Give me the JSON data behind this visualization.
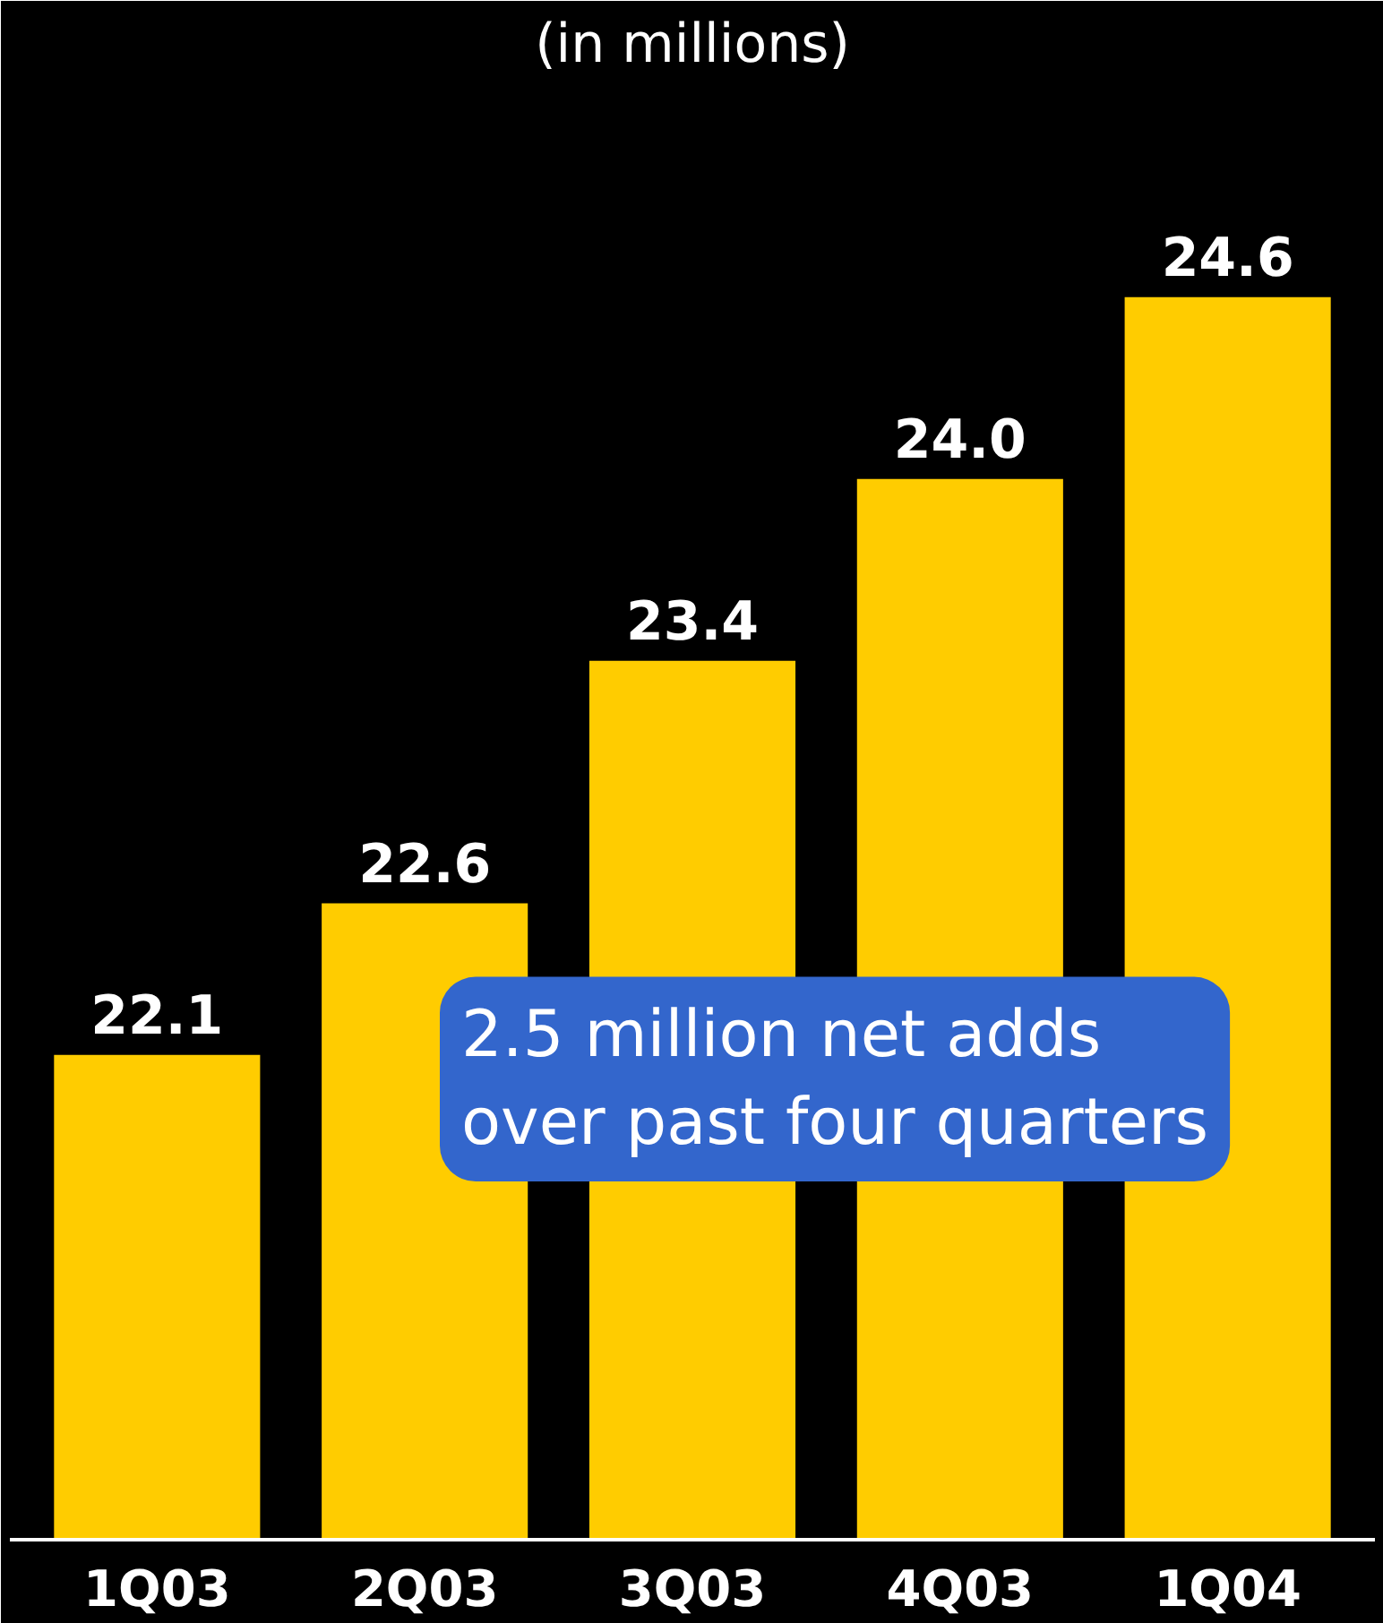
{
  "chart_data": {
    "type": "bar",
    "subtitle": "(in millions)",
    "categories": [
      "1Q03",
      "2Q03",
      "3Q03",
      "4Q03",
      "1Q04"
    ],
    "values": [
      22.1,
      22.6,
      23.4,
      24.0,
      24.6
    ],
    "color": "#ffcc00",
    "value_labels": [
      "22.1",
      "22.6",
      "23.4",
      "24.0",
      "24.6"
    ],
    "ylim": [
      20.5,
      25.3
    ],
    "tick_labels": "x",
    "grid": false,
    "annotations": [
      "2.5 million net adds\nover past four quarters"
    ]
  }
}
